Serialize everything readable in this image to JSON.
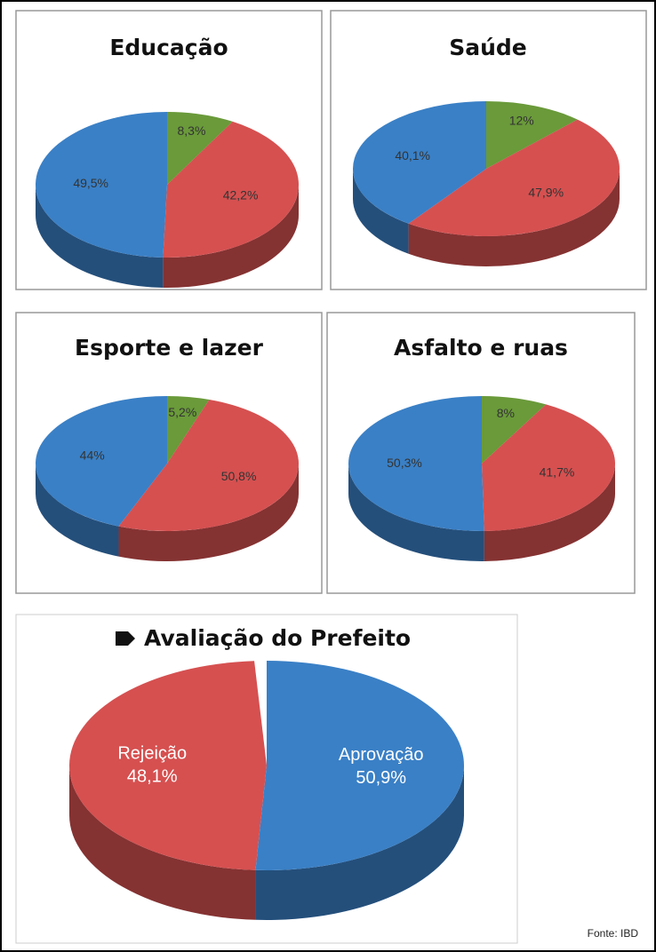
{
  "chart_data": [
    {
      "type": "pie",
      "title": "Educação",
      "values": [
        8.3,
        42.2,
        49.5
      ],
      "value_labels": [
        "8,3%",
        "42,2%",
        "49,5%"
      ],
      "colors": [
        "#6a9a3a",
        "#d65050",
        "#3a80c6"
      ]
    },
    {
      "type": "pie",
      "title": "Saúde",
      "values": [
        12,
        47.9,
        40.1
      ],
      "value_labels": [
        "12%",
        "47,9%",
        "40,1%"
      ],
      "colors": [
        "#6a9a3a",
        "#d65050",
        "#3a80c6"
      ]
    },
    {
      "type": "pie",
      "title": "Esporte e lazer",
      "values": [
        5.2,
        50.8,
        44
      ],
      "value_labels": [
        "5,2%",
        "50,8%",
        "44%"
      ],
      "colors": [
        "#6a9a3a",
        "#d65050",
        "#3a80c6"
      ]
    },
    {
      "type": "pie",
      "title": "Asfalto e ruas",
      "values": [
        8,
        41.7,
        50.3
      ],
      "value_labels": [
        "8%",
        "41,7%",
        "50,3%"
      ],
      "colors": [
        "#6a9a3a",
        "#d65050",
        "#3a80c6"
      ]
    },
    {
      "type": "pie",
      "title": "Avaliação do Prefeito",
      "categories": [
        "Aprovação",
        "Rejeição"
      ],
      "values": [
        50.9,
        48.1
      ],
      "value_labels": [
        "50,9%",
        "48,1%"
      ],
      "colors": [
        "#3a80c6",
        "#d65050"
      ]
    }
  ],
  "source": "Fonte: IBD"
}
